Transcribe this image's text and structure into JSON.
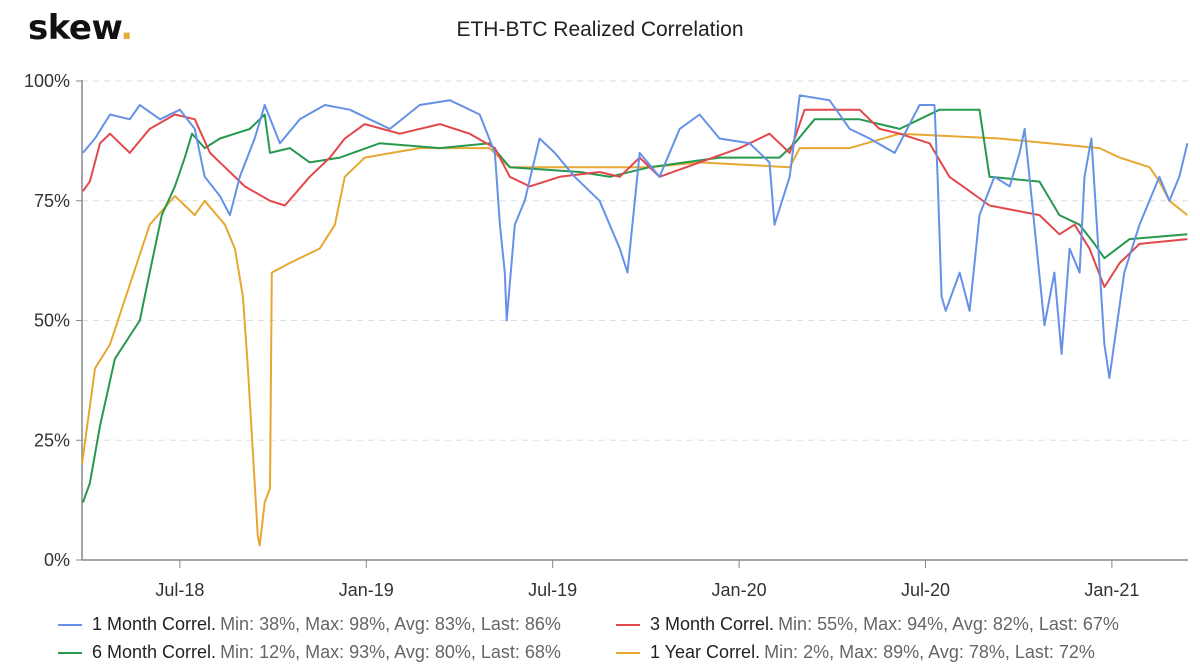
{
  "logo": {
    "text": "skew",
    "dot": "."
  },
  "chart_data": {
    "type": "line",
    "title": "ETH-BTC Realized Correlation",
    "xlabel": "",
    "ylabel": "",
    "x_unit": "months since Jan 2018",
    "xlim": [
      2.85,
      38.45
    ],
    "ylim": [
      0,
      100
    ],
    "y_ticks": [
      {
        "v": 0,
        "label": "0%"
      },
      {
        "v": 25,
        "label": "25%"
      },
      {
        "v": 50,
        "label": "50%"
      },
      {
        "v": 75,
        "label": "75%"
      },
      {
        "v": 100,
        "label": "100%"
      }
    ],
    "x_ticks": [
      {
        "v": 6,
        "label": "Jul-18"
      },
      {
        "v": 12,
        "label": "Jan-19"
      },
      {
        "v": 18,
        "label": "Jul-19"
      },
      {
        "v": 24,
        "label": "Jan-20"
      },
      {
        "v": 30,
        "label": "Jul-20"
      },
      {
        "v": 36,
        "label": "Jan-21"
      }
    ],
    "grid": "horizontal-dashed",
    "legend_placement": "bottom",
    "series": [
      {
        "name": "1 Month Correl.",
        "stats": "Min: 38%, Max: 98%, Avg: 83%, Last: 86%",
        "color": "#6592e6",
        "points": [
          [
            2.88,
            85
          ],
          [
            3.27,
            88
          ],
          [
            3.75,
            93
          ],
          [
            4.39,
            92
          ],
          [
            4.71,
            95
          ],
          [
            5.36,
            92
          ],
          [
            6,
            94
          ],
          [
            6.48,
            90
          ],
          [
            6.8,
            80
          ],
          [
            7.29,
            76
          ],
          [
            7.61,
            72
          ],
          [
            7.93,
            80
          ],
          [
            8.41,
            88
          ],
          [
            8.73,
            95
          ],
          [
            9.22,
            87
          ],
          [
            9.86,
            92
          ],
          [
            10.67,
            95
          ],
          [
            11.47,
            94
          ],
          [
            12.11,
            92
          ],
          [
            12.76,
            90
          ],
          [
            13.72,
            95
          ],
          [
            14.69,
            96
          ],
          [
            15.65,
            93
          ],
          [
            16.14,
            85
          ],
          [
            16.3,
            70
          ],
          [
            16.46,
            60
          ],
          [
            16.52,
            50
          ],
          [
            16.78,
            70
          ],
          [
            17.1,
            75
          ],
          [
            17.58,
            88
          ],
          [
            18.07,
            85
          ],
          [
            18.71,
            80
          ],
          [
            19.51,
            75
          ],
          [
            20.16,
            65
          ],
          [
            20.41,
            60
          ],
          [
            20.8,
            85
          ],
          [
            21.44,
            80
          ],
          [
            22.09,
            90
          ],
          [
            22.73,
            93
          ],
          [
            23.37,
            88
          ],
          [
            24.34,
            87
          ],
          [
            24.98,
            83
          ],
          [
            25.14,
            70
          ],
          [
            25.63,
            80
          ],
          [
            25.95,
            97
          ],
          [
            26.91,
            96
          ],
          [
            27.56,
            90
          ],
          [
            28.2,
            88
          ],
          [
            29.01,
            85
          ],
          [
            29.81,
            95
          ],
          [
            30.29,
            95
          ],
          [
            30.39,
            80
          ],
          [
            30.52,
            55
          ],
          [
            30.65,
            52
          ],
          [
            31.1,
            60
          ],
          [
            31.42,
            52
          ],
          [
            31.74,
            72
          ],
          [
            32.22,
            80
          ],
          [
            32.71,
            78
          ],
          [
            33.03,
            85
          ],
          [
            33.19,
            90
          ],
          [
            33.83,
            49
          ],
          [
            34.15,
            60
          ],
          [
            34.38,
            43
          ],
          [
            34.64,
            65
          ],
          [
            34.96,
            60
          ],
          [
            35.12,
            80
          ],
          [
            35.34,
            88
          ],
          [
            35.76,
            45
          ],
          [
            35.92,
            38
          ],
          [
            36.18,
            50
          ],
          [
            36.4,
            60
          ],
          [
            36.89,
            70
          ],
          [
            37.53,
            80
          ],
          [
            37.85,
            75
          ],
          [
            38.17,
            80
          ],
          [
            38.43,
            87
          ]
        ]
      },
      {
        "name": "3 Month Correl.",
        "stats": "Min: 55%, Max: 94%, Avg: 82%, Last: 67%",
        "color": "#e2474b",
        "points": [
          [
            2.88,
            77
          ],
          [
            3.1,
            79
          ],
          [
            3.43,
            87
          ],
          [
            3.75,
            89
          ],
          [
            4.39,
            85
          ],
          [
            5.03,
            90
          ],
          [
            5.84,
            93
          ],
          [
            6.48,
            92
          ],
          [
            6.97,
            85
          ],
          [
            7.45,
            82
          ],
          [
            8.09,
            78
          ],
          [
            8.9,
            75
          ],
          [
            9.38,
            74
          ],
          [
            10.18,
            80
          ],
          [
            10.83,
            84
          ],
          [
            11.31,
            88
          ],
          [
            11.95,
            91
          ],
          [
            13.08,
            89
          ],
          [
            14.37,
            91
          ],
          [
            15.33,
            89
          ],
          [
            16.14,
            86
          ],
          [
            16.62,
            80
          ],
          [
            17.26,
            78
          ],
          [
            18.23,
            80
          ],
          [
            19.51,
            81
          ],
          [
            20.16,
            80
          ],
          [
            20.8,
            84
          ],
          [
            21.44,
            80
          ],
          [
            22.73,
            83
          ],
          [
            24.02,
            86
          ],
          [
            24.98,
            89
          ],
          [
            25.63,
            85
          ],
          [
            26.11,
            94
          ],
          [
            27.88,
            94
          ],
          [
            28.52,
            90
          ],
          [
            29.17,
            89
          ],
          [
            30.13,
            87
          ],
          [
            30.77,
            80
          ],
          [
            31.42,
            77
          ],
          [
            32.06,
            74
          ],
          [
            33.67,
            72
          ],
          [
            34.31,
            68
          ],
          [
            34.8,
            70
          ],
          [
            35.28,
            65
          ],
          [
            35.76,
            57
          ],
          [
            36.25,
            62
          ],
          [
            36.89,
            66
          ],
          [
            38.43,
            67
          ]
        ]
      },
      {
        "name": "6 Month Correl.",
        "stats": "Min: 12%, Max: 93%, Avg: 80%, Last: 68%",
        "color": "#27994f",
        "points": [
          [
            2.88,
            12
          ],
          [
            3.1,
            16
          ],
          [
            3.43,
            28
          ],
          [
            3.91,
            42
          ],
          [
            4.71,
            50
          ],
          [
            5.03,
            60
          ],
          [
            5.42,
            72
          ],
          [
            5.84,
            78
          ],
          [
            6.16,
            84
          ],
          [
            6.39,
            89
          ],
          [
            6.8,
            86
          ],
          [
            7.29,
            88
          ],
          [
            8.25,
            90
          ],
          [
            8.73,
            93
          ],
          [
            8.9,
            85
          ],
          [
            9.54,
            86
          ],
          [
            10.18,
            83
          ],
          [
            11.15,
            84
          ],
          [
            12.43,
            87
          ],
          [
            14.37,
            86
          ],
          [
            15.97,
            87
          ],
          [
            16.62,
            82
          ],
          [
            18.87,
            81
          ],
          [
            19.84,
            80
          ],
          [
            21.12,
            82
          ],
          [
            23.37,
            84
          ],
          [
            25.3,
            84
          ],
          [
            25.79,
            87
          ],
          [
            26.43,
            92
          ],
          [
            27.88,
            92
          ],
          [
            29.17,
            90
          ],
          [
            30.45,
            94
          ],
          [
            31.74,
            94
          ],
          [
            32.06,
            80
          ],
          [
            33.67,
            79
          ],
          [
            34.31,
            72
          ],
          [
            34.96,
            70
          ],
          [
            35.44,
            66
          ],
          [
            35.76,
            63
          ],
          [
            36.57,
            67
          ],
          [
            38.43,
            68
          ]
        ]
      },
      {
        "name": "1 Year Correl.",
        "stats": "Min: 2%, Max: 89%, Avg: 78%, Last: 72%",
        "color": "#e6a832",
        "points": [
          [
            2.85,
            20
          ],
          [
            3.27,
            40
          ],
          [
            3.75,
            45
          ],
          [
            5.03,
            70
          ],
          [
            5.84,
            76
          ],
          [
            6.48,
            72
          ],
          [
            6.8,
            75
          ],
          [
            7.45,
            70
          ],
          [
            7.77,
            65
          ],
          [
            8.03,
            55
          ],
          [
            8.19,
            40
          ],
          [
            8.51,
            5
          ],
          [
            8.57,
            3
          ],
          [
            8.73,
            12
          ],
          [
            8.9,
            15
          ],
          [
            8.96,
            60
          ],
          [
            9.54,
            62
          ],
          [
            10.5,
            65
          ],
          [
            10.99,
            70
          ],
          [
            11.31,
            80
          ],
          [
            11.95,
            84
          ],
          [
            13.72,
            86
          ],
          [
            15.97,
            86
          ],
          [
            16.62,
            82
          ],
          [
            18.87,
            82
          ],
          [
            21.12,
            82
          ],
          [
            22.73,
            83
          ],
          [
            25.63,
            82
          ],
          [
            25.95,
            86
          ],
          [
            27.56,
            86
          ],
          [
            29.17,
            89
          ],
          [
            32.38,
            88
          ],
          [
            35.6,
            86
          ],
          [
            36.25,
            84
          ],
          [
            37.21,
            82
          ],
          [
            37.53,
            79
          ],
          [
            37.85,
            75
          ],
          [
            38.43,
            72
          ]
        ]
      }
    ]
  }
}
